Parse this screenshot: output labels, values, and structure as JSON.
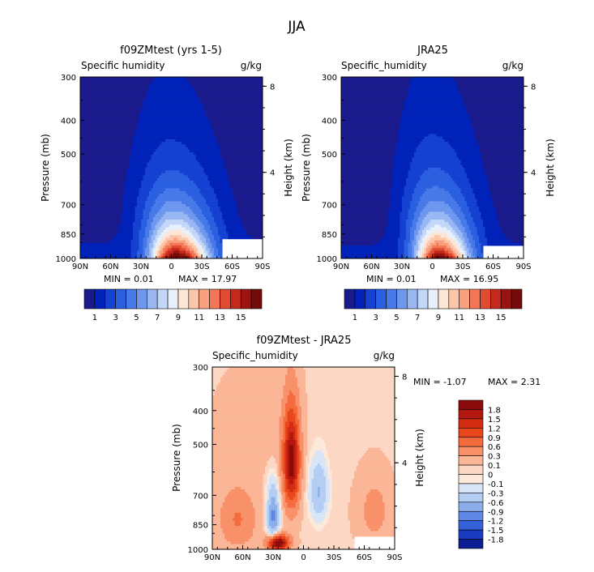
{
  "page_title": "JJA",
  "chart_data": [
    {
      "type": "heatmap",
      "title": "f09ZMtest (yrs 1-5)",
      "left_label": "Specific humidity",
      "right_label": "g/kg",
      "ylabel": "Pressure (mb)",
      "y2label": "Height (km)",
      "xticks": [
        "90N",
        "60N",
        "30N",
        "0",
        "30S",
        "60S",
        "90S"
      ],
      "yticks": [
        "300",
        "400",
        "500",
        "700",
        "850",
        "1000"
      ],
      "y2ticks": [
        "8",
        "4"
      ],
      "ylim": [
        300,
        1000
      ],
      "min_text": "MIN =    0.01",
      "max_text": "MAX =   17.97",
      "colorbar": {
        "labels": [
          "1",
          "3",
          "5",
          "7",
          "9",
          "11",
          "13",
          "15"
        ],
        "colors": [
          "#1a1a8c",
          "#0022b8",
          "#1541d2",
          "#2a5fe0",
          "#4879e8",
          "#6e97ee",
          "#98b7f3",
          "#c3d7f8",
          "#e8f0fb",
          "#fde6d6",
          "#fcc6aa",
          "#f9a07e",
          "#f37757",
          "#e04b31",
          "#c32a1c",
          "#9c1410",
          "#750a0a"
        ]
      },
      "profile": {
        "peak_max": 17.97,
        "peak_lat": -5,
        "peak_width": 25,
        "tilt": 0.4,
        "decay": 0.55
      }
    },
    {
      "type": "heatmap",
      "title": "JRA25",
      "left_label": "Specific_humidity",
      "right_label": "g/kg",
      "ylabel": "Pressure (mb)",
      "y2label": "Height (km)",
      "xticks": [
        "90N",
        "60N",
        "30N",
        "0",
        "30S",
        "60S",
        "90S"
      ],
      "yticks": [
        "300",
        "400",
        "500",
        "700",
        "850",
        "1000"
      ],
      "y2ticks": [
        "8",
        "4"
      ],
      "ylim": [
        300,
        1000
      ],
      "min_text": "MIN =    0.01",
      "max_text": "MAX =   16.95",
      "colorbar": {
        "labels": [
          "1",
          "3",
          "5",
          "7",
          "9",
          "11",
          "13",
          "15"
        ],
        "colors": [
          "#1a1a8c",
          "#0022b8",
          "#1541d2",
          "#2a5fe0",
          "#4879e8",
          "#6e97ee",
          "#98b7f3",
          "#c3d7f8",
          "#e8f0fb",
          "#fde6d6",
          "#fcc6aa",
          "#f9a07e",
          "#f37757",
          "#e04b31",
          "#c32a1c",
          "#9c1410",
          "#750a0a"
        ]
      },
      "profile": {
        "peak_max": 16.95,
        "peak_lat": -7,
        "peak_width": 23,
        "tilt": 0.45,
        "decay": 0.58
      }
    },
    {
      "type": "heatmap",
      "title": "f09ZMtest - JRA25",
      "left_label": "Specific_humidity",
      "right_label": "g/kg",
      "ylabel": "Pressure (mb)",
      "y2label": "Height (km)",
      "xticks": [
        "90N",
        "60N",
        "30N",
        "0",
        "30S",
        "60S",
        "90S"
      ],
      "yticks": [
        "300",
        "400",
        "500",
        "700",
        "850",
        "1000"
      ],
      "y2ticks": [
        "8",
        "4"
      ],
      "ylim": [
        300,
        1000
      ],
      "min_text": "MIN =   -1.07",
      "max_text": "MAX =    2.31",
      "colorbar": {
        "labels": [
          "1.8",
          "1.5",
          "1.2",
          "0.9",
          "0.6",
          "0.3",
          "0.1",
          "0",
          "-0.1",
          "-0.3",
          "-0.6",
          "-0.9",
          "-1.2",
          "-1.5",
          "-1.8"
        ],
        "colors": [
          "#8b0a0a",
          "#b2180f",
          "#d22d13",
          "#e8471c",
          "#f46b3d",
          "#f89169",
          "#fbb697",
          "#fcd8c4",
          "#fde9d9",
          "#d8e5f7",
          "#b4cdf2",
          "#8caeeb",
          "#5f88e4",
          "#3561d8",
          "#1a3cc0",
          "#0a1d92"
        ]
      }
    }
  ]
}
